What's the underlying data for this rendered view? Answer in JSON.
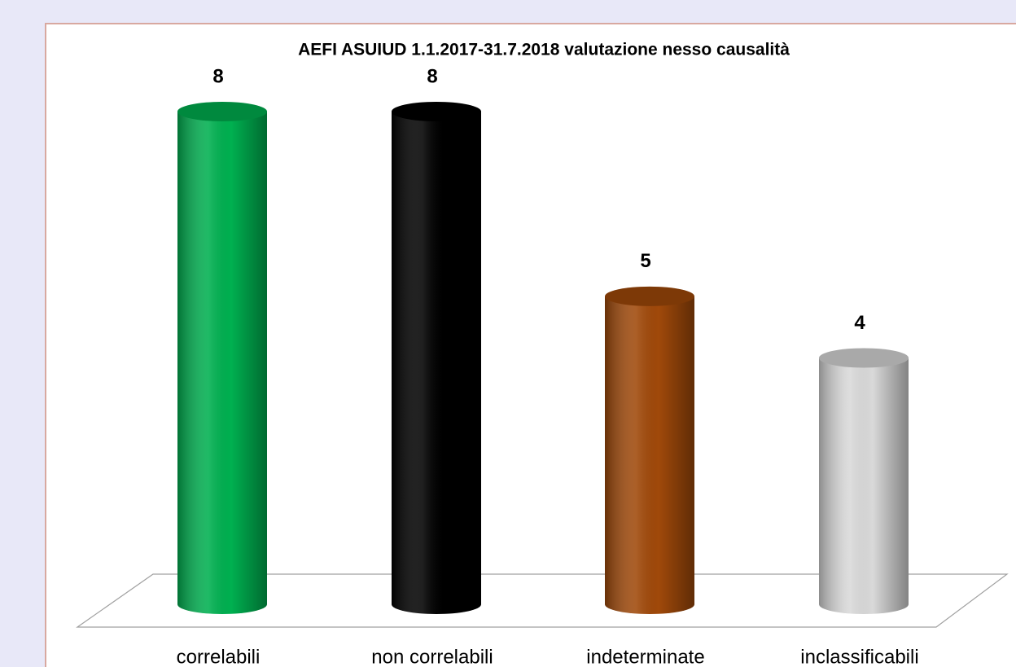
{
  "chart_data": {
    "type": "bar",
    "title": "AEFI ASUIUD 1.1.2017-31.7.2018  valutazione nesso causalità",
    "categories": [
      "correlabili",
      "non correlabili",
      "indeterminate",
      "inclassificabili"
    ],
    "values": [
      8,
      8,
      5,
      4
    ],
    "colors": [
      "#00b050",
      "#000000",
      "#a0490a",
      "#d9d9d9"
    ]
  }
}
